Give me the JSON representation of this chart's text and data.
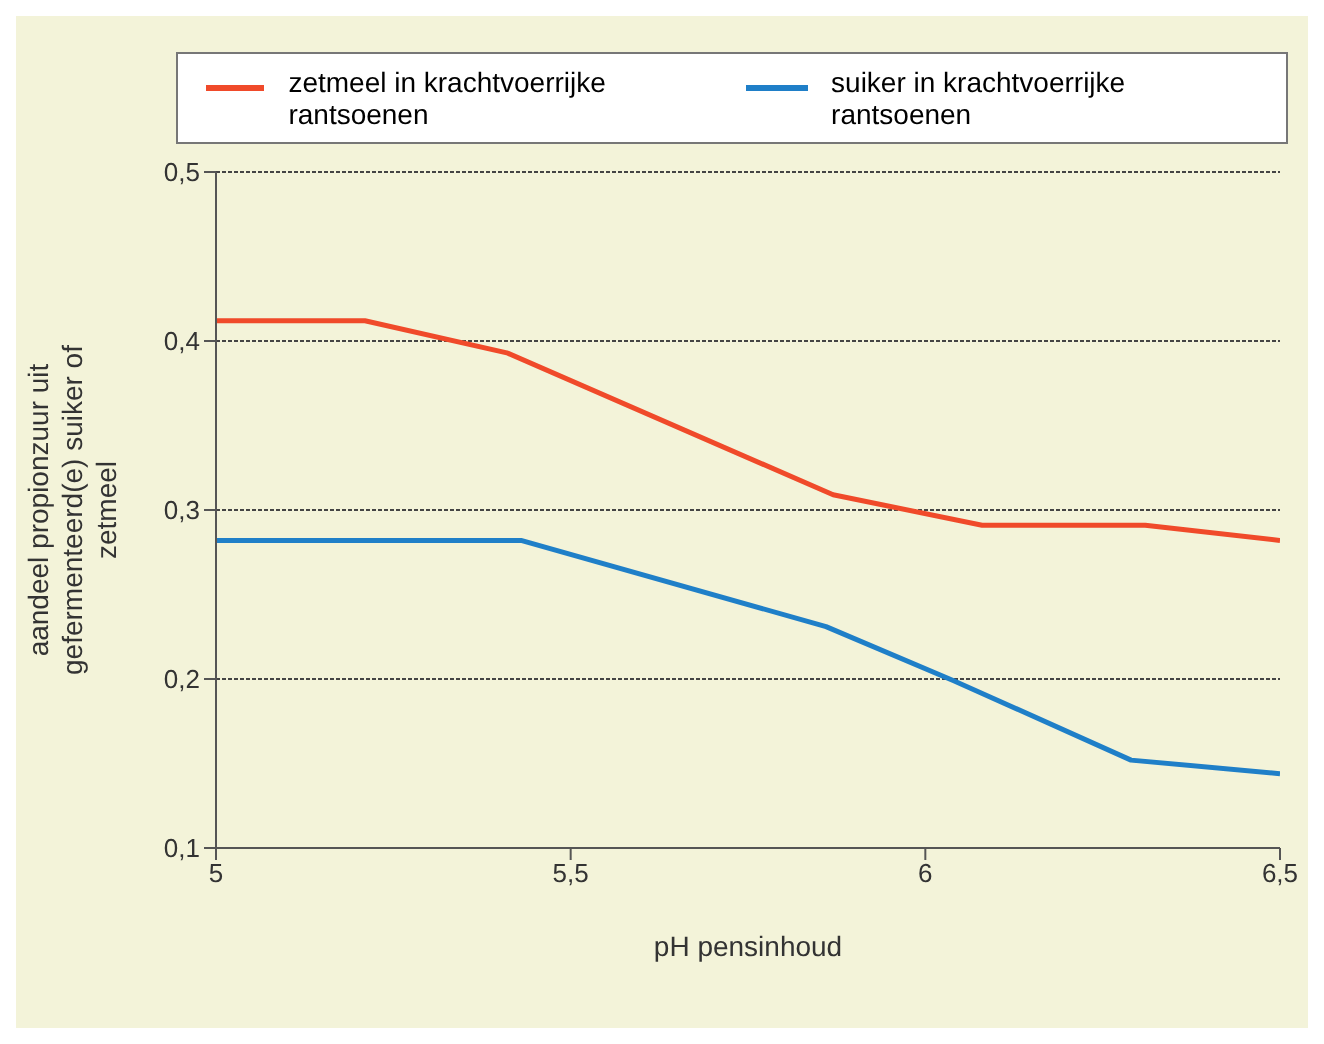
{
  "chart_data": {
    "type": "line",
    "xlabel": "pH pensinhoud",
    "ylabel": "aandeel propionzuur uit gefermenteerd(e) suiker of zetmeel",
    "xlim": [
      5,
      6.5
    ],
    "xticks": [
      5,
      {
        "value": 5.5,
        "label": "5,5"
      },
      6,
      {
        "value": 6.5,
        "label": "6,5"
      }
    ],
    "ylim": [
      0.1,
      0.5
    ],
    "yticks": [
      {
        "value": 0.1,
        "label": "0,1"
      },
      {
        "value": 0.2,
        "label": "0,2"
      },
      {
        "value": 0.3,
        "label": "0,3"
      },
      {
        "value": 0.4,
        "label": "0,4"
      },
      {
        "value": 0.5,
        "label": "0,5"
      }
    ],
    "grid": "y",
    "legend": "top",
    "marker": "none",
    "line_style": "solid",
    "series": [
      {
        "name": "zetmeel in krachtvoerrijke rantsoenen",
        "color": "#f04a2a",
        "x": [
          5,
          5.21,
          5.41,
          5.87,
          6.08,
          6.31,
          6.5
        ],
        "values": [
          0.412,
          0.412,
          0.393,
          0.309,
          0.291,
          0.291,
          0.282
        ]
      },
      {
        "name": "suiker in krachtvoerrijke rantsoenen",
        "color": "#1f7fc8",
        "x": [
          5,
          5.43,
          5.86,
          6.04,
          6.29,
          6.5
        ],
        "values": [
          0.282,
          0.282,
          0.231,
          0.199,
          0.152,
          0.144
        ]
      }
    ]
  }
}
